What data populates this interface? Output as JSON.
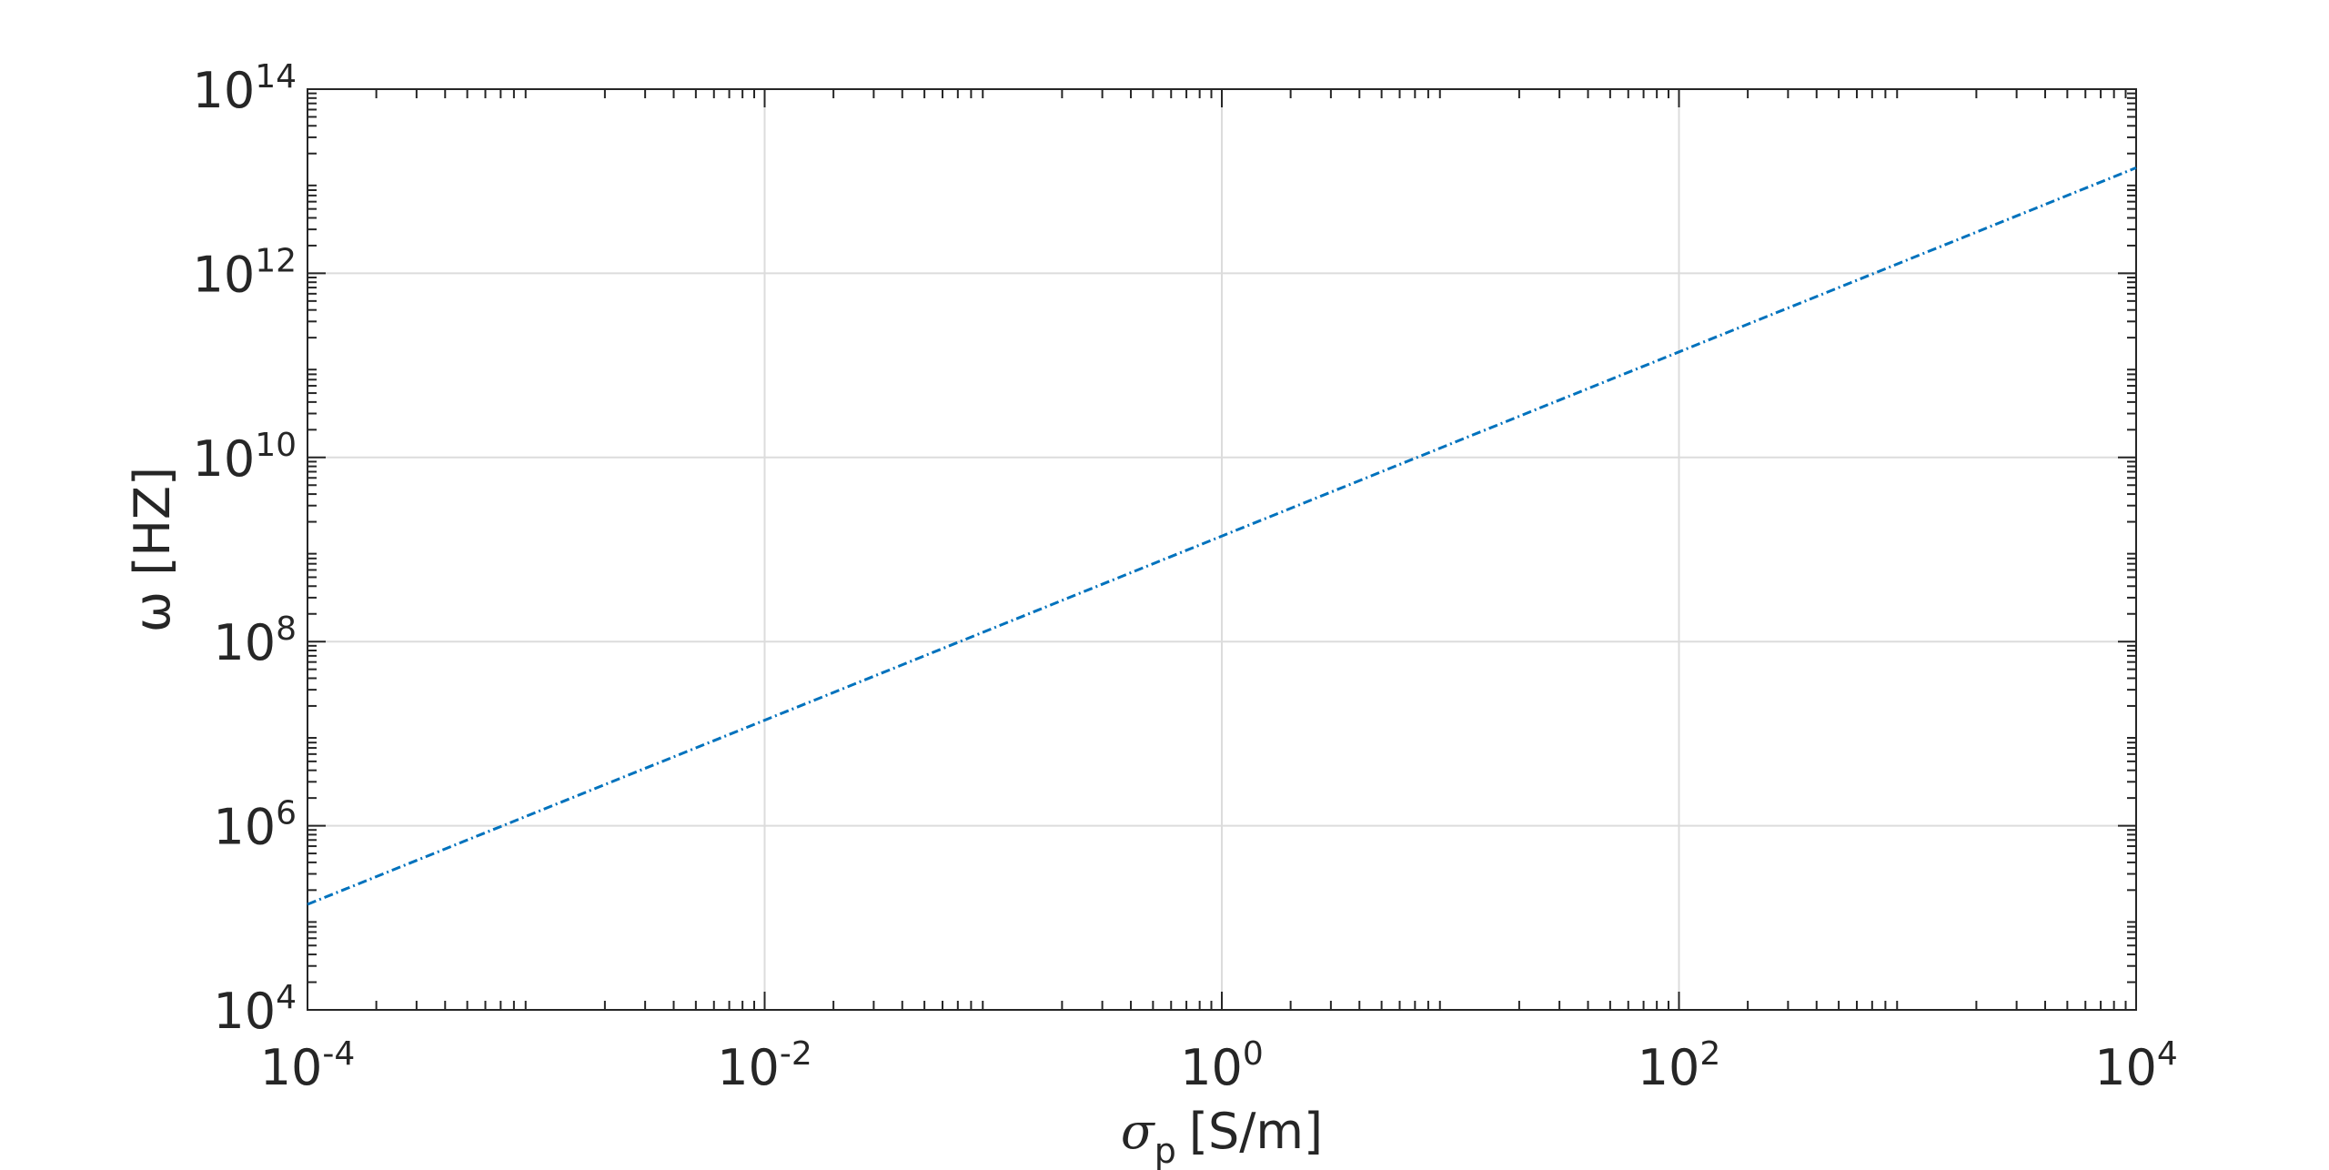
{
  "chart_data": {
    "type": "line",
    "xlabel": {
      "symbol": "σ",
      "subscript": "p",
      "unit": "[S/m]"
    },
    "ylabel": "ω [HZ]",
    "x": [
      0.0001,
      0.01,
      1,
      100,
      10000
    ],
    "series": [
      {
        "color": "#0072bd",
        "values": [
          140000,
          14000000,
          1400000000,
          140000000000,
          14000000000000
        ]
      }
    ],
    "xscale": "log",
    "yscale": "log",
    "xlim": [
      0.0001,
      10000
    ],
    "ylim": [
      10000,
      100000000000000
    ],
    "xticks": [
      {
        "value": 0.0001,
        "label": "10",
        "exponent": "-4"
      },
      {
        "value": 0.01,
        "label": "10",
        "exponent": "-2"
      },
      {
        "value": 1,
        "label": "10",
        "exponent": "0"
      },
      {
        "value": 100,
        "label": "10",
        "exponent": "2"
      },
      {
        "value": 10000,
        "label": "10",
        "exponent": "4"
      }
    ],
    "yticks": [
      {
        "value": 10000,
        "label": "10",
        "exponent": "4"
      },
      {
        "value": 1000000,
        "label": "10",
        "exponent": "6"
      },
      {
        "value": 100000000,
        "label": "10",
        "exponent": "8"
      },
      {
        "value": 10000000000,
        "label": "10",
        "exponent": "10"
      },
      {
        "value": 1000000000000,
        "label": "10",
        "exponent": "12"
      },
      {
        "value": 100000000000000,
        "label": "10",
        "exponent": "14"
      }
    ],
    "grid": true
  }
}
